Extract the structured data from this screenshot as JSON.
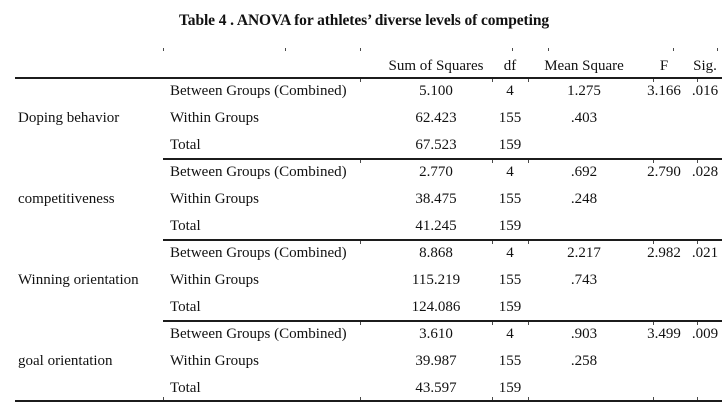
{
  "colors": {
    "background": "#ffffff",
    "text": "#111111",
    "rule": "#1c1c1c"
  },
  "title": "Table 4 . ANOVA for athletes’ diverse levels of competing",
  "header": {
    "sum_of_squares": "Sum of Squares",
    "df": "df",
    "mean_square": "Mean Square",
    "f": "F",
    "sig": "Sig."
  },
  "groups": [
    {
      "factor": "Doping behavior",
      "rows": [
        {
          "label": "Between Groups (Combined)",
          "sum_of_squares": "5.100",
          "df": "4",
          "mean_square": "1.275",
          "f": "3.166",
          "sig": ".016"
        },
        {
          "label": "Within Groups",
          "sum_of_squares": "62.423",
          "df": "155",
          "mean_square": ".403",
          "f": "",
          "sig": ""
        },
        {
          "label": "Total",
          "sum_of_squares": "67.523",
          "df": "159",
          "mean_square": "",
          "f": "",
          "sig": ""
        }
      ]
    },
    {
      "factor": "competitiveness",
      "rows": [
        {
          "label": "Between Groups (Combined)",
          "sum_of_squares": "2.770",
          "df": "4",
          "mean_square": ".692",
          "f": "2.790",
          "sig": ".028"
        },
        {
          "label": "Within Groups",
          "sum_of_squares": "38.475",
          "df": "155",
          "mean_square": ".248",
          "f": "",
          "sig": ""
        },
        {
          "label": "Total",
          "sum_of_squares": "41.245",
          "df": "159",
          "mean_square": "",
          "f": "",
          "sig": ""
        }
      ]
    },
    {
      "factor": "Winning orientation",
      "rows": [
        {
          "label": "Between Groups (Combined)",
          "sum_of_squares": "8.868",
          "df": "4",
          "mean_square": "2.217",
          "f": "2.982",
          "sig": ".021"
        },
        {
          "label": "Within Groups",
          "sum_of_squares": "115.219",
          "df": "155",
          "mean_square": ".743",
          "f": "",
          "sig": ""
        },
        {
          "label": "Total",
          "sum_of_squares": "124.086",
          "df": "159",
          "mean_square": "",
          "f": "",
          "sig": ""
        }
      ]
    },
    {
      "factor": "goal orientation",
      "rows": [
        {
          "label": "Between Groups (Combined)",
          "sum_of_squares": "3.610",
          "df": "4",
          "mean_square": ".903",
          "f": "3.499",
          "sig": ".009"
        },
        {
          "label": "Within Groups",
          "sum_of_squares": "39.987",
          "df": "155",
          "mean_square": ".258",
          "f": "",
          "sig": ""
        },
        {
          "label": "Total",
          "sum_of_squares": "43.597",
          "df": "159",
          "mean_square": "",
          "f": "",
          "sig": ""
        }
      ]
    }
  ]
}
